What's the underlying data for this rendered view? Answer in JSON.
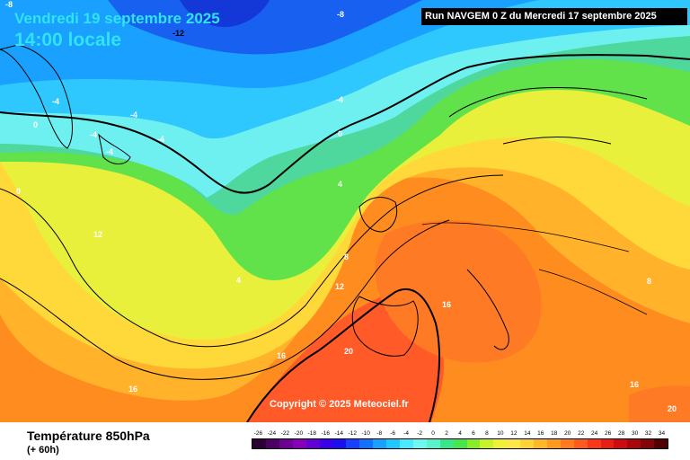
{
  "header": {
    "date": "Vendredi 19 septembre 2025",
    "time": "14:00 locale",
    "run": "Run NAVGEM 0 Z du Mercredi 17 septembre 2025"
  },
  "map": {
    "copyright": "Copyright © 2025 Meteociel.fr",
    "isotherm_labels": [
      "-8",
      "-12",
      "-8",
      "-4",
      "-4",
      "-4",
      "-4",
      "-4",
      "-4",
      "0",
      "0",
      "0",
      "4",
      "4",
      "8",
      "12",
      "12",
      "16",
      "16",
      "16",
      "16",
      "8",
      "20",
      "20"
    ]
  },
  "footer": {
    "variable": "Température 850hPa",
    "lead": "(+ 60h)"
  },
  "colorbar": {
    "labels": [
      "-26",
      "-24",
      "-22",
      "-20",
      "-18",
      "-16",
      "-14",
      "-12",
      "-10",
      "-8",
      "-6",
      "-4",
      "-2",
      "0",
      "2",
      "4",
      "6",
      "8",
      "10",
      "12",
      "14",
      "16",
      "18",
      "20",
      "22",
      "24",
      "26",
      "28",
      "30",
      "32",
      "34"
    ],
    "colors": [
      "#2b0035",
      "#4b0063",
      "#6c0092",
      "#8500b8",
      "#6200d6",
      "#3a00e8",
      "#1a10f2",
      "#1840ff",
      "#1570ff",
      "#1aa0ff",
      "#20c8ff",
      "#4be8ff",
      "#6ff7f0",
      "#5af2c8",
      "#38e888",
      "#48e64a",
      "#88ec2a",
      "#c8f22a",
      "#f0f03a",
      "#fde64a",
      "#ffd23a",
      "#ffb82a",
      "#ff9a20",
      "#ff7a20",
      "#ff5a20",
      "#f83818",
      "#e81e14",
      "#cc0c10",
      "#a8080c",
      "#800408",
      "#500004"
    ]
  }
}
